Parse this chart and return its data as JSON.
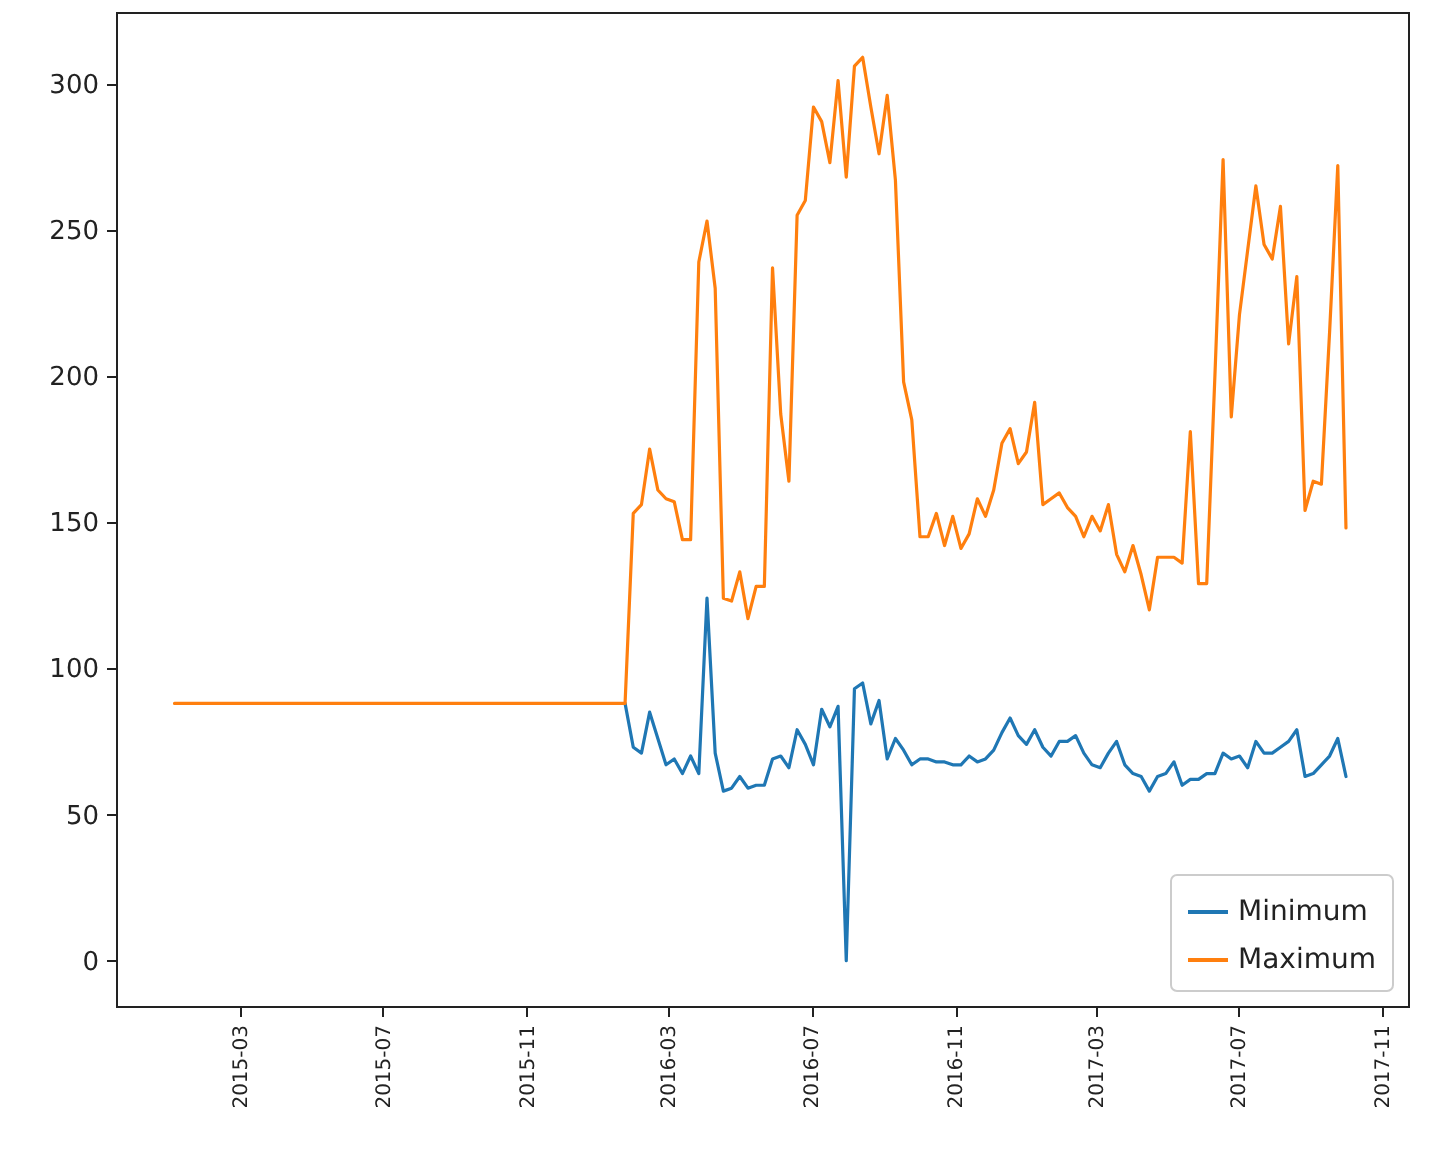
{
  "chart_data": {
    "type": "line",
    "xlim": [
      "2014-11-15",
      "2017-11-23"
    ],
    "xticks": [
      "2015-03",
      "2015-07",
      "2015-11",
      "2016-03",
      "2016-07",
      "2016-11",
      "2017-03",
      "2017-07",
      "2017-11"
    ],
    "ylim": [
      -15.5,
      324.5
    ],
    "yticks": [
      0,
      50,
      100,
      150,
      200,
      250,
      300
    ],
    "legend": "bottom right",
    "marker": "none",
    "line_style": "solid",
    "series": [
      {
        "name": "Minimum",
        "color": "#1f77b4",
        "x": [
          "2016-01-24",
          "2016-01-31",
          "2016-02-07",
          "2016-02-14",
          "2016-02-21",
          "2016-02-28",
          "2016-03-06",
          "2016-03-13",
          "2016-03-20",
          "2016-03-27",
          "2016-04-03",
          "2016-04-10",
          "2016-04-17",
          "2016-04-24",
          "2016-05-01",
          "2016-05-08",
          "2016-05-15",
          "2016-05-22",
          "2016-05-29",
          "2016-06-05",
          "2016-06-12",
          "2016-06-19",
          "2016-06-26",
          "2016-07-03",
          "2016-07-10",
          "2016-07-17",
          "2016-07-24",
          "2016-07-31",
          "2016-08-07",
          "2016-08-14",
          "2016-08-21",
          "2016-08-28",
          "2016-09-04",
          "2016-09-11",
          "2016-09-18",
          "2016-09-25",
          "2016-10-02",
          "2016-10-09",
          "2016-10-16",
          "2016-10-23",
          "2016-10-30",
          "2016-11-06",
          "2016-11-13",
          "2016-11-20",
          "2016-11-27",
          "2016-12-04",
          "2016-12-11",
          "2016-12-18",
          "2016-12-25",
          "2017-01-01",
          "2017-01-08",
          "2017-01-15",
          "2017-01-22",
          "2017-01-29",
          "2017-02-05",
          "2017-02-12",
          "2017-02-19",
          "2017-02-26",
          "2017-03-05",
          "2017-03-12",
          "2017-03-19",
          "2017-03-26",
          "2017-04-02",
          "2017-04-09",
          "2017-04-16",
          "2017-04-23",
          "2017-04-30",
          "2017-05-07",
          "2017-05-14",
          "2017-05-21",
          "2017-05-28",
          "2017-06-04",
          "2017-06-11",
          "2017-06-18",
          "2017-06-25",
          "2017-07-02",
          "2017-07-09",
          "2017-07-16",
          "2017-07-23",
          "2017-07-30",
          "2017-08-06",
          "2017-08-13",
          "2017-08-20",
          "2017-08-27",
          "2017-09-03",
          "2017-09-10",
          "2017-09-17",
          "2017-09-24",
          "2017-10-01"
        ],
        "values": [
          88,
          73,
          71,
          85,
          76,
          67,
          69,
          64,
          70,
          64,
          124,
          71,
          58,
          59,
          63,
          59,
          60,
          60,
          69,
          70,
          66,
          79,
          74,
          67,
          86,
          80,
          87,
          0,
          93,
          95,
          81,
          89,
          69,
          76,
          72,
          67,
          69,
          69,
          68,
          68,
          67,
          67,
          70,
          68,
          69,
          72,
          78,
          83,
          77,
          74,
          79,
          73,
          70,
          75,
          75,
          77,
          71,
          67,
          66,
          71,
          75,
          67,
          64,
          63,
          58,
          63,
          64,
          68,
          60,
          62,
          62,
          64,
          64,
          71,
          69,
          70,
          66,
          75,
          71,
          71,
          73,
          75,
          79,
          63,
          64,
          67,
          70,
          76,
          63
        ]
      },
      {
        "name": "Maximum",
        "color": "#ff7f0e",
        "x": [
          "2015-01-04",
          "2016-01-24",
          "2016-01-31",
          "2016-02-07",
          "2016-02-14",
          "2016-02-21",
          "2016-02-28",
          "2016-03-06",
          "2016-03-13",
          "2016-03-20",
          "2016-03-27",
          "2016-04-03",
          "2016-04-10",
          "2016-04-17",
          "2016-04-24",
          "2016-05-01",
          "2016-05-08",
          "2016-05-15",
          "2016-05-22",
          "2016-05-29",
          "2016-06-05",
          "2016-06-12",
          "2016-06-19",
          "2016-06-26",
          "2016-07-03",
          "2016-07-10",
          "2016-07-17",
          "2016-07-24",
          "2016-07-31",
          "2016-08-07",
          "2016-08-14",
          "2016-08-21",
          "2016-08-28",
          "2016-09-04",
          "2016-09-11",
          "2016-09-18",
          "2016-09-25",
          "2016-10-02",
          "2016-10-09",
          "2016-10-16",
          "2016-10-23",
          "2016-10-30",
          "2016-11-06",
          "2016-11-13",
          "2016-11-20",
          "2016-11-27",
          "2016-12-04",
          "2016-12-11",
          "2016-12-18",
          "2016-12-25",
          "2017-01-01",
          "2017-01-08",
          "2017-01-15",
          "2017-01-22",
          "2017-01-29",
          "2017-02-05",
          "2017-02-12",
          "2017-02-19",
          "2017-02-26",
          "2017-03-05",
          "2017-03-12",
          "2017-03-19",
          "2017-03-26",
          "2017-04-02",
          "2017-04-09",
          "2017-04-16",
          "2017-04-23",
          "2017-04-30",
          "2017-05-07",
          "2017-05-14",
          "2017-05-21",
          "2017-05-28",
          "2017-06-04",
          "2017-06-11",
          "2017-06-18",
          "2017-06-25",
          "2017-07-02",
          "2017-07-09",
          "2017-07-16",
          "2017-07-23",
          "2017-07-30",
          "2017-08-06",
          "2017-08-13",
          "2017-08-20",
          "2017-08-27",
          "2017-09-03",
          "2017-09-10",
          "2017-09-17",
          "2017-09-24",
          "2017-10-01"
        ],
        "values": [
          88,
          88,
          153,
          156,
          175,
          161,
          158,
          157,
          144,
          144,
          239,
          253,
          230,
          124,
          123,
          133,
          117,
          128,
          128,
          237,
          187,
          164,
          255,
          260,
          292,
          287,
          273,
          301,
          268,
          306,
          309,
          292,
          276,
          296,
          267,
          198,
          185,
          145,
          145,
          153,
          142,
          152,
          141,
          146,
          158,
          152,
          161,
          177,
          182,
          170,
          174,
          191,
          156,
          158,
          160,
          155,
          152,
          145,
          152,
          147,
          156,
          139,
          133,
          142,
          132,
          120,
          138,
          138,
          138,
          136,
          181,
          129,
          129,
          200,
          274,
          186,
          221,
          243,
          265,
          245,
          240,
          258,
          211,
          234,
          154,
          164,
          163,
          215,
          272,
          148
        ]
      }
    ]
  }
}
